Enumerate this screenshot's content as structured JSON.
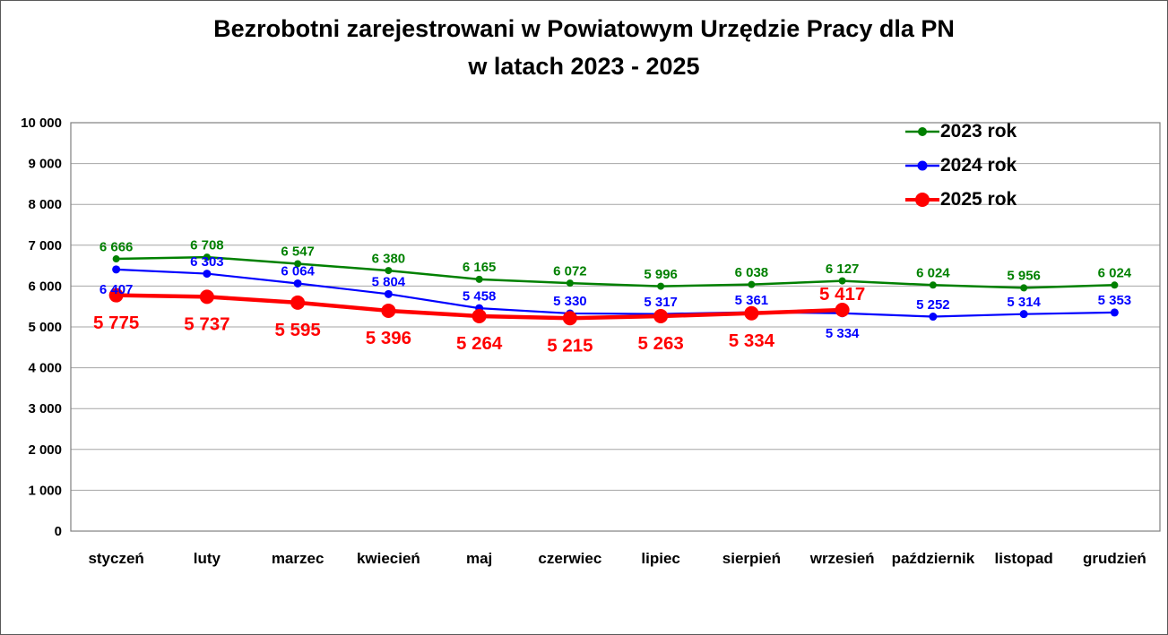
{
  "title": {
    "line1": "Bezrobotni zarejestrowani w Powiatowym Urzędzie Pracy dla PN",
    "line2": "w latach 2023 - 2025"
  },
  "chart_data": {
    "type": "line",
    "title": "Bezrobotni zarejestrowani w Powiatowym Urzędzie Pracy dla PN w latach 2023 - 2025",
    "categories": [
      "styczeń",
      "luty",
      "marzec",
      "kwiecień",
      "maj",
      "czerwiec",
      "lipiec",
      "sierpień",
      "wrzesień",
      "październik",
      "listopad",
      "grudzień"
    ],
    "series": [
      {
        "name": "2023 rok",
        "color": "#008000",
        "line_width": 2.5,
        "marker_radius": 4,
        "label_font_size": 15,
        "values": [
          6666,
          6708,
          6547,
          6380,
          6165,
          6072,
          5996,
          6038,
          6127,
          6024,
          5956,
          6024
        ],
        "label_side": [
          "above",
          "above",
          "above",
          "above",
          "above",
          "above",
          "above",
          "above",
          "above",
          "above",
          "above",
          "above"
        ]
      },
      {
        "name": "2024 rok",
        "color": "#0000ff",
        "line_width": 2.2,
        "marker_radius": 4.5,
        "label_font_size": 15,
        "values": [
          6407,
          6303,
          6064,
          5804,
          5458,
          5330,
          5317,
          5361,
          5334,
          5252,
          5314,
          5353
        ],
        "label_side": [
          "below",
          "above",
          "above",
          "above",
          "above",
          "above",
          "above",
          "above",
          "below",
          "above",
          "above",
          "above"
        ]
      },
      {
        "name": "2025 rok",
        "color": "#ff0000",
        "line_width": 4.5,
        "marker_radius": 8,
        "label_font_size": 20.5,
        "values": [
          5775,
          5737,
          5595,
          5396,
          5264,
          5215,
          5263,
          5334,
          5417,
          null,
          null,
          null
        ],
        "label_side": [
          "below",
          "below",
          "below",
          "below",
          "below",
          "below",
          "below",
          "below",
          "above",
          "above",
          "above",
          "above"
        ]
      }
    ],
    "ylim": [
      0,
      10000
    ],
    "ytick_step": 1000,
    "ytick_labels": [
      "0",
      "1 000",
      "2 000",
      "3 000",
      "4 000",
      "5 000",
      "6 000",
      "7 000",
      "8 000",
      "9 000",
      "10 000"
    ],
    "grid": true,
    "gridline_color": "#a6a6a6",
    "plot_border_color": "#808080",
    "legend_position": "top-right",
    "legend_labels": [
      "2023 rok",
      "2024 rok",
      "2025 rok"
    ]
  }
}
